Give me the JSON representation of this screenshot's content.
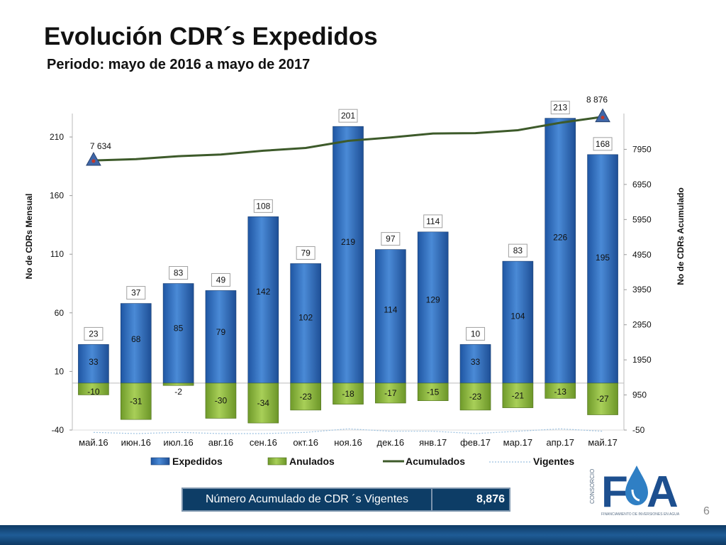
{
  "title": "Evolución CDR´s Expedidos",
  "subtitle": "Periodo: mayo de 2016 a mayo de 2017",
  "colors": {
    "expedidos": "#2e6fc0",
    "anulados": "#8dbb3a",
    "acumulados": "#3d5a2a",
    "vigentes": "#9cc1e0",
    "label_box_border": "#a0a0a0",
    "marker": "#3f66a8"
  },
  "chart_data": {
    "type": "bar",
    "categories": [
      "май.16",
      "июн.16",
      "июл.16",
      "авг.16",
      "сен.16",
      "окт.16",
      "ноя.16",
      "дек.16",
      "янв.17",
      "фев.17",
      "мар.17",
      "апр.17",
      "май.17"
    ],
    "ylabel": "No de CDRs Mensual",
    "y2label": "No de CDRs Acumulado",
    "ylim": [
      -40,
      230
    ],
    "y2lim": [
      -50,
      8970
    ],
    "yticks": [
      "-40",
      "10",
      "60",
      "110",
      "160",
      "210"
    ],
    "y2ticks": [
      "-50",
      "950",
      "1950",
      "2950",
      "3950",
      "4950",
      "5950",
      "6950",
      "7950"
    ],
    "series": [
      {
        "name": "Expedidos",
        "type": "bar",
        "values": [
          33,
          68,
          85,
          79,
          142,
          102,
          219,
          114,
          129,
          33,
          104,
          226,
          195
        ]
      },
      {
        "name": "Anulados",
        "type": "bar",
        "values": [
          -10,
          -31,
          -2,
          -30,
          -34,
          -23,
          -18,
          -17,
          -15,
          -23,
          -21,
          -13,
          -27
        ]
      },
      {
        "name": "Acumulados",
        "type": "line",
        "axis": "right",
        "values": [
          7634,
          7671,
          7754,
          7803,
          7911,
          7990,
          8191,
          8288,
          8402,
          8412,
          8495,
          8708,
          8876
        ]
      },
      {
        "name": "Vigentes",
        "type": "line",
        "axis": "left",
        "values": [
          -42,
          -43,
          -42,
          -43,
          -43,
          -42,
          -39,
          -41,
          -41,
          -43,
          -41,
          -39,
          -41
        ]
      }
    ],
    "box_labels": [
      "23",
      "37",
      "83",
      "49",
      "108",
      "79",
      "201",
      "97",
      "114",
      "10",
      "83",
      "213",
      "168"
    ],
    "endpoint_labels": {
      "first": "7 634",
      "last": "8 876"
    },
    "legend": [
      "Expedidos",
      "Anulados",
      "Acumulados",
      "Vigentes"
    ],
    "legend_position": "bottom"
  },
  "summary": {
    "label": "Número Acumulado de CDR ´s Vigentes",
    "value": "8,876"
  },
  "page_number": "6"
}
